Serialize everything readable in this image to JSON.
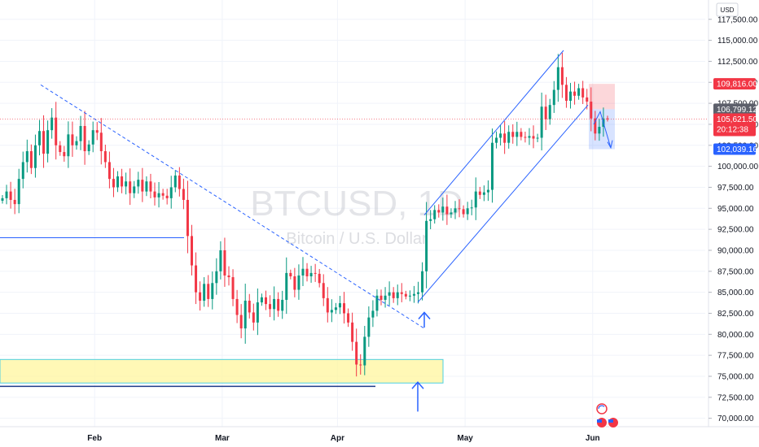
{
  "chart_data": {
    "type": "candlestick",
    "symbol": "BTCUSD, 1D",
    "subtitle": "Bitcoin / U.S. Dollar",
    "currency": "USD",
    "y_ticks": [
      117500,
      115000,
      112500,
      110000,
      107500,
      105000,
      102500,
      100000,
      97500,
      95000,
      92500,
      90000,
      87500,
      85000,
      82500,
      80000,
      77500,
      75000,
      72500,
      70000
    ],
    "y_tick_labels": [
      "117,500.00",
      "115,000.00",
      "112,500.00",
      "110,000.00",
      "107,500.00",
      "105,000.00",
      "102,500.00",
      "100,000.00",
      "97,500.00",
      "95,000.00",
      "92,500.00",
      "90,000.00",
      "87,500.00",
      "85,000.00",
      "82,500.00",
      "80,000.00",
      "77,500.00",
      "75,000.00",
      "72,500.00",
      "70,000.00"
    ],
    "x_labels": [
      "Feb",
      "Mar",
      "Apr",
      "May",
      "Jun"
    ],
    "price_tags": [
      {
        "label": "109,816.00",
        "value": 109816,
        "color": "#f23645"
      },
      {
        "label": "106,799.12",
        "value": 106799.12,
        "color": "#5d606b"
      },
      {
        "label": "105,621.50",
        "value": 105621.5,
        "color": "#f23645",
        "countdown": "20:12:38"
      },
      {
        "label": "102,039.16",
        "value": 102039.16,
        "color": "#2962ff"
      }
    ],
    "closes": [
      96200,
      97000,
      96000,
      95500,
      98500,
      100500,
      101800,
      99800,
      102500,
      104200,
      101500,
      104300,
      105800,
      102500,
      101700,
      101200,
      103800,
      102500,
      103000,
      104800,
      101800,
      102600,
      104300,
      104000,
      101800,
      100500,
      98500,
      97500,
      98800,
      97600,
      98200,
      96800,
      97600,
      98400,
      97000,
      98200,
      97000,
      96300,
      96800,
      96500,
      96200,
      97500,
      98900,
      97300,
      96000,
      91700,
      88200,
      85000,
      84000,
      86000,
      84200,
      86100,
      87500,
      90000,
      87000,
      86800,
      84200,
      82300,
      80700,
      84000,
      82600,
      81400,
      83800,
      84400,
      83600,
      83000,
      84200,
      82800,
      84100,
      87300,
      86900,
      85300,
      87000,
      87800,
      86900,
      87300,
      87200,
      86100,
      84300,
      82600,
      82900,
      83200,
      83700,
      82500,
      81400,
      79100,
      76400,
      76300,
      79700,
      82000,
      82800,
      84600,
      84100,
      84600,
      85000,
      84300,
      85000,
      84800,
      84500,
      84600,
      84800,
      85000,
      87500,
      93500,
      93700,
      94800,
      94500,
      95200,
      94300,
      94500,
      95000,
      94900,
      94300,
      95000,
      95100,
      97000,
      96600,
      96900,
      97200,
      102800,
      103400,
      103900,
      102800,
      104100,
      103500,
      104100,
      103500,
      103400,
      103600,
      103300,
      103400,
      107100,
      105600,
      107300,
      109100,
      111800,
      109700,
      107800,
      108900,
      108400,
      109300,
      108200,
      107700,
      105700,
      103900,
      104700,
      105700,
      105621.5
    ],
    "ylim": [
      69000,
      119800
    ]
  }
}
